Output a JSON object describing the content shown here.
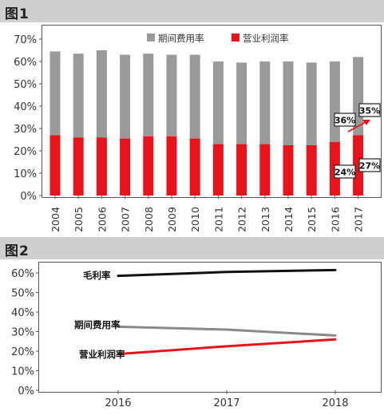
{
  "chart_data": [
    {
      "type": "bar",
      "panel_title": "图1",
      "stacked": true,
      "categories": [
        "2004",
        "2005",
        "2006",
        "2007",
        "2008",
        "2009",
        "2010",
        "2011",
        "2012",
        "2013",
        "2014",
        "2015",
        "2016",
        "2017"
      ],
      "series": [
        {
          "name": "营业利润率",
          "color": "#e8141c",
          "values": [
            27,
            26,
            26,
            25.5,
            26.5,
            26.5,
            25.5,
            23,
            23,
            23,
            22.5,
            22.5,
            24,
            27
          ]
        },
        {
          "name": "期间费用率",
          "color": "#9a9a9a",
          "values": [
            37.5,
            37.5,
            39,
            37.5,
            37,
            36.5,
            37.5,
            37,
            36.5,
            37,
            37.5,
            37,
            36,
            35
          ]
        }
      ],
      "y_ticks": [
        "0%",
        "10%",
        "20%",
        "30%",
        "40%",
        "50%",
        "60%",
        "70%"
      ],
      "ylim": [
        0,
        72
      ],
      "legend_position": "top",
      "annotations": {
        "fee_2016": "36%",
        "fee_2017": "35%",
        "profit_2016": "24%",
        "profit_2017": "27%"
      }
    },
    {
      "type": "line",
      "panel_title": "图2",
      "x": [
        "2016",
        "2017",
        "2018"
      ],
      "series": [
        {
          "name": "毛利率",
          "color": "#111111",
          "values": [
            58.5,
            60.5,
            61.5
          ]
        },
        {
          "name": "期间费用率",
          "color": "#8a8a8a",
          "values": [
            32.5,
            31,
            28
          ]
        },
        {
          "name": "营业利润率",
          "color": "#e8141c",
          "values": [
            18.5,
            22.5,
            26
          ]
        }
      ],
      "y_ticks": [
        "0%",
        "10%",
        "20%",
        "30%",
        "40%",
        "50%",
        "60%"
      ],
      "ylim": [
        0,
        65
      ]
    }
  ]
}
